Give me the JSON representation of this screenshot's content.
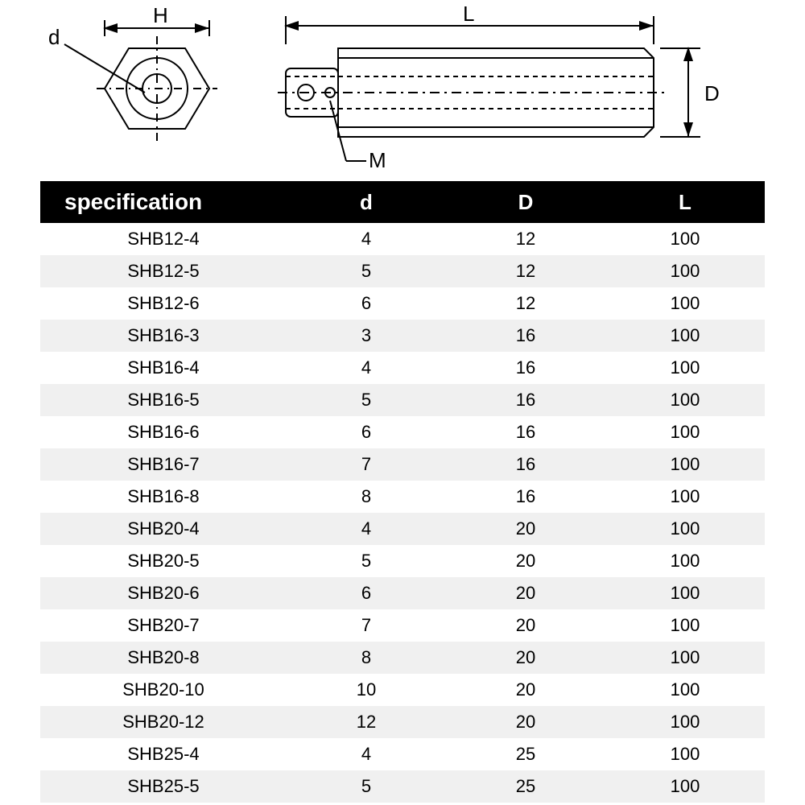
{
  "diagram": {
    "labels": {
      "H": "H",
      "d": "d",
      "L": "L",
      "D": "D",
      "M": "M"
    },
    "stroke_color": "#000000",
    "stroke_width": 2,
    "font_size": 26,
    "font_family": "Arial"
  },
  "table": {
    "header_bg": "#000000",
    "header_fg": "#ffffff",
    "row_alt_bg": "#f0f0f0",
    "row_bg": "#ffffff",
    "font_size_header": 26,
    "font_size_cell": 22,
    "columns": [
      "specification",
      "d",
      "D",
      "L"
    ],
    "rows": [
      [
        "SHB12-4",
        "4",
        "12",
        "100"
      ],
      [
        "SHB12-5",
        "5",
        "12",
        "100"
      ],
      [
        "SHB12-6",
        "6",
        "12",
        "100"
      ],
      [
        "SHB16-3",
        "3",
        "16",
        "100"
      ],
      [
        "SHB16-4",
        "4",
        "16",
        "100"
      ],
      [
        "SHB16-5",
        "5",
        "16",
        "100"
      ],
      [
        "SHB16-6",
        "6",
        "16",
        "100"
      ],
      [
        "SHB16-7",
        "7",
        "16",
        "100"
      ],
      [
        "SHB16-8",
        "8",
        "16",
        "100"
      ],
      [
        "SHB20-4",
        "4",
        "20",
        "100"
      ],
      [
        "SHB20-5",
        "5",
        "20",
        "100"
      ],
      [
        "SHB20-6",
        "6",
        "20",
        "100"
      ],
      [
        "SHB20-7",
        "7",
        "20",
        "100"
      ],
      [
        "SHB20-8",
        "8",
        "20",
        "100"
      ],
      [
        "SHB20-10",
        "10",
        "20",
        "100"
      ],
      [
        "SHB20-12",
        "12",
        "20",
        "100"
      ],
      [
        "SHB25-4",
        "4",
        "25",
        "100"
      ],
      [
        "SHB25-5",
        "5",
        "25",
        "100"
      ]
    ]
  }
}
